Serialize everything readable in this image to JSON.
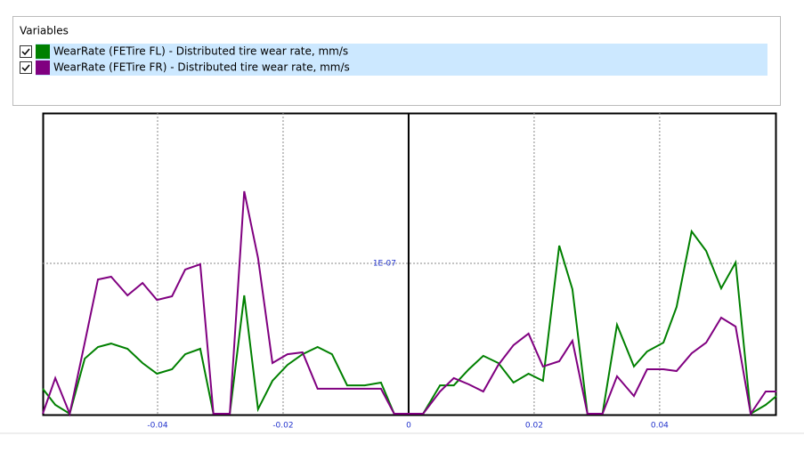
{
  "panel_title": "Variables",
  "chart_data": {
    "type": "line",
    "x": [
      -0.0583,
      -0.0563,
      -0.054,
      -0.0516,
      -0.0495,
      -0.0474,
      -0.0448,
      -0.0424,
      -0.0401,
      -0.0377,
      -0.0356,
      -0.0332,
      -0.0311,
      -0.0285,
      -0.0262,
      -0.024,
      -0.0217,
      -0.0193,
      -0.0169,
      -0.0145,
      -0.0122,
      -0.0098,
      -0.007,
      -0.0044,
      -0.0023,
      0,
      0.0023,
      0.005,
      0.0072,
      0.0096,
      0.0119,
      0.0143,
      0.0167,
      0.0191,
      0.0214,
      0.024,
      0.0261,
      0.0285,
      0.0309,
      0.0332,
      0.0359,
      0.038,
      0.0406,
      0.0427,
      0.0451,
      0.0474,
      0.0498,
      0.0521,
      0.0545,
      0.0569,
      0.0586
    ],
    "series": [
      {
        "name": "WearRate (FETire FL) - Distributed tire wear rate, mm/s",
        "color": "#008000",
        "values": [
          1.66e-08,
          5.9e-09,
          0,
          3.67e-08,
          4.44e-08,
          4.67e-08,
          4.32e-08,
          3.37e-08,
          2.66e-08,
          2.96e-08,
          3.96e-08,
          4.32e-08,
          0,
          0,
          7.87e-08,
          3e-09,
          2.19e-08,
          3.25e-08,
          3.96e-08,
          4.44e-08,
          3.96e-08,
          1.89e-08,
          1.89e-08,
          2.07e-08,
          0,
          0,
          0,
          1.89e-08,
          1.89e-08,
          2.96e-08,
          3.85e-08,
          3.37e-08,
          2.07e-08,
          2.66e-08,
          2.19e-08,
          1.118e-07,
          8.28e-08,
          0,
          0,
          5.92e-08,
          3.14e-08,
          4.14e-08,
          4.73e-08,
          7.1e-08,
          1.213e-07,
          1.083e-07,
          8.34e-08,
          1.006e-07,
          0,
          5.9e-09,
          1.18e-08
        ]
      },
      {
        "name": "WearRate (FETire FR) - Distributed tire wear rate, mm/s",
        "color": "#800080",
        "values": [
          0,
          2.37e-08,
          0,
          4.73e-08,
          8.93e-08,
          9.11e-08,
          7.87e-08,
          8.7e-08,
          7.57e-08,
          7.81e-08,
          9.59e-08,
          9.94e-08,
          0,
          0,
          1.479e-07,
          1.036e-07,
          3.37e-08,
          3.96e-08,
          4.08e-08,
          1.66e-08,
          1.66e-08,
          1.66e-08,
          1.66e-08,
          1.66e-08,
          0,
          0,
          0,
          1.48e-08,
          2.37e-08,
          1.95e-08,
          1.48e-08,
          3.25e-08,
          4.56e-08,
          5.33e-08,
          3.14e-08,
          3.49e-08,
          4.85e-08,
          0,
          0,
          2.49e-08,
          1.18e-08,
          2.96e-08,
          2.96e-08,
          2.84e-08,
          4.02e-08,
          4.73e-08,
          6.39e-08,
          5.8e-08,
          0,
          1.48e-08,
          1.48e-08
        ]
      }
    ],
    "xlim": [
      -0.0583,
      0.0586
    ],
    "xticks": [
      -0.04,
      -0.02,
      0,
      0.02,
      0.04
    ],
    "ylim": [
      0,
      2e-07
    ],
    "yticks": [
      {
        "value": 1e-07,
        "label": "1E-07"
      }
    ],
    "grid": true
  }
}
